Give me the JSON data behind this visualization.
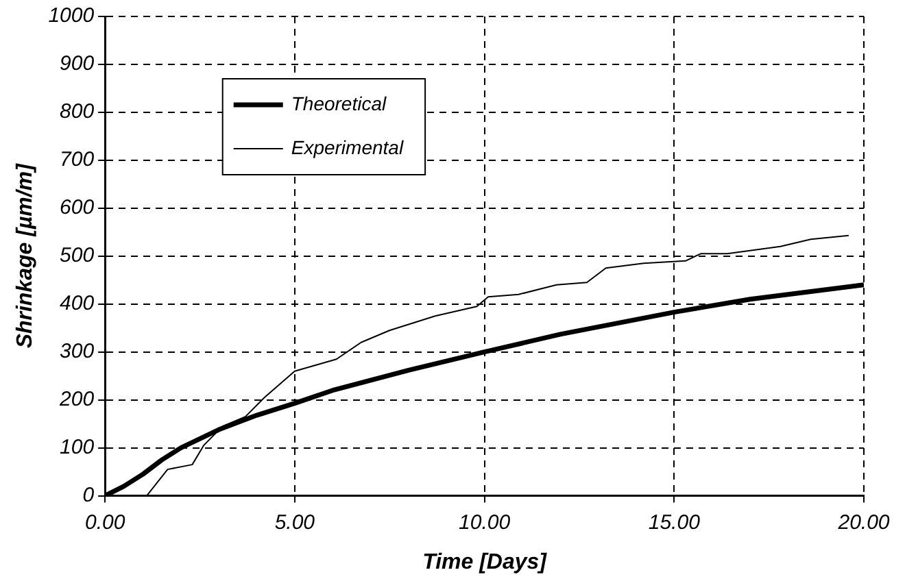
{
  "chart_data": {
    "type": "line",
    "xlabel": "Time [Days]",
    "ylabel": "Shrinkage [µm/m]",
    "xlim": [
      0,
      20
    ],
    "xticks": [
      {
        "value": 0,
        "label": "0.00"
      },
      {
        "value": 5,
        "label": "5.00"
      },
      {
        "value": 10,
        "label": "10.00"
      },
      {
        "value": 15,
        "label": "15.00"
      },
      {
        "value": 20,
        "label": "20.00"
      }
    ],
    "ylim": [
      0,
      1000
    ],
    "yticks": [
      0,
      100,
      200,
      300,
      400,
      500,
      600,
      700,
      800,
      900,
      1000
    ],
    "grid": true,
    "legend": "top left",
    "marker": "none",
    "series": [
      {
        "name": "Theoretical",
        "color": "#000000",
        "x": [
          0,
          0.5,
          1,
          1.5,
          2,
          3,
          4,
          5,
          6,
          8,
          10,
          12,
          15,
          17,
          20
        ],
        "values": [
          0,
          20,
          45,
          75,
          100,
          138,
          168,
          193,
          220,
          262,
          300,
          337,
          383,
          410,
          440
        ]
      },
      {
        "name": "Experimental",
        "color": "#000000",
        "x": [
          1.1,
          1.65,
          2.3,
          2.6,
          3.1,
          3.7,
          4.2,
          5,
          6.1,
          6.75,
          7.5,
          8.7,
          9.8,
          10.1,
          10.9,
          11.9,
          12.7,
          13.2,
          14.2,
          15.3,
          15.7,
          16.4,
          17.8,
          18.6,
          19.6
        ],
        "values": [
          0,
          55,
          65,
          105,
          145,
          165,
          205,
          260,
          285,
          320,
          345,
          375,
          395,
          415,
          420,
          440,
          445,
          475,
          485,
          490,
          505,
          505,
          520,
          535,
          543
        ]
      }
    ]
  }
}
